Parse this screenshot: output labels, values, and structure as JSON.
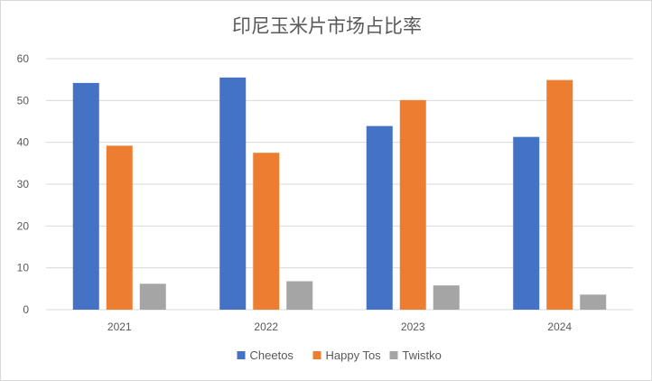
{
  "chart_data": {
    "type": "bar",
    "title": "印尼玉米片市场占比率",
    "xlabel": "",
    "ylabel": "",
    "categories": [
      "2021",
      "2022",
      "2023",
      "2024"
    ],
    "series": [
      {
        "name": "Cheetos",
        "color": "#4472c4",
        "values": [
          54.2,
          55.5,
          43.9,
          41.3
        ]
      },
      {
        "name": "Happy Tos",
        "color": "#ed7d31",
        "values": [
          39.2,
          37.5,
          50.1,
          54.9
        ]
      },
      {
        "name": "Twistko",
        "color": "#a5a5a5",
        "values": [
          6.2,
          6.8,
          5.8,
          3.6
        ]
      }
    ],
    "ylim": [
      0,
      60
    ],
    "yticks": [
      0,
      10,
      20,
      30,
      40,
      50,
      60
    ],
    "grid": true,
    "legend": "bottom-center"
  }
}
